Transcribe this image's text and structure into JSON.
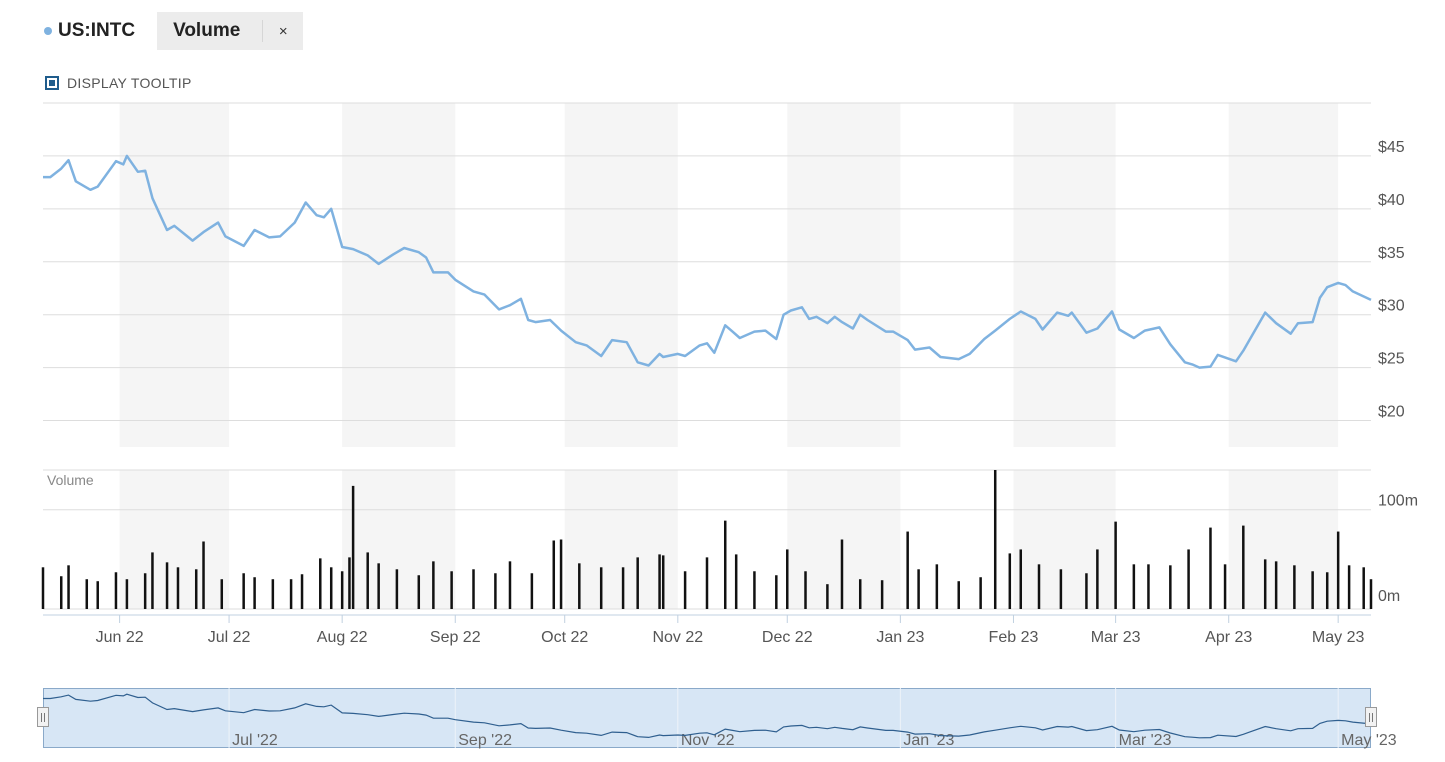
{
  "header": {
    "ticker": "US:INTC",
    "study_label": "Volume",
    "close_label": "×"
  },
  "tooltip_toggle": {
    "label": "DISPLAY TOOLTIP",
    "checked": true
  },
  "colors": {
    "price_line": "#7fb2e0",
    "volume_bar": "#111111",
    "band": "#f5f5f5",
    "grid": "#dddddd",
    "navigator_fill": "#d7e6f5",
    "navigator_border": "#8aa9c9"
  },
  "chart_data": {
    "type": "line",
    "title": "",
    "price_axis": {
      "ticks": [
        "$45",
        "$40",
        "$35",
        "$30",
        "$25",
        "$20"
      ],
      "tick_values": [
        45,
        40,
        35,
        30,
        25,
        20
      ],
      "ylim": [
        17.5,
        50
      ]
    },
    "volume_axis": {
      "label": "Volume",
      "ticks": [
        "100m",
        "0m"
      ],
      "tick_values": [
        100,
        0
      ],
      "ylim": [
        0,
        140
      ]
    },
    "x_axis": {
      "ticks": [
        "Jun 22",
        "Jul 22",
        "Aug 22",
        "Sep 22",
        "Oct 22",
        "Nov 22",
        "Dec 22",
        "Jan 23",
        "Feb 23",
        "Mar 23",
        "Apr 23",
        "May 23"
      ],
      "tick_dates": [
        "2022-06-01",
        "2022-07-01",
        "2022-08-01",
        "2022-09-01",
        "2022-10-01",
        "2022-11-01",
        "2022-12-01",
        "2023-01-01",
        "2023-02-01",
        "2023-03-01",
        "2023-04-01",
        "2023-05-01"
      ],
      "range": [
        "2022-05-11",
        "2023-05-10"
      ]
    },
    "series": [
      {
        "values": [
          [
            "2022-05-11",
            43.0
          ],
          [
            "2022-05-13",
            43.0
          ],
          [
            "2022-05-16",
            43.8
          ],
          [
            "2022-05-18",
            44.6
          ],
          [
            "2022-05-20",
            42.6
          ],
          [
            "2022-05-24",
            41.8
          ],
          [
            "2022-05-26",
            42.1
          ],
          [
            "2022-05-31",
            44.5
          ],
          [
            "2022-06-02",
            44.2
          ],
          [
            "2022-06-03",
            45.0
          ],
          [
            "2022-06-06",
            43.5
          ],
          [
            "2022-06-08",
            43.6
          ],
          [
            "2022-06-10",
            41.0
          ],
          [
            "2022-06-14",
            38.0
          ],
          [
            "2022-06-16",
            38.4
          ],
          [
            "2022-06-21",
            37.0
          ],
          [
            "2022-06-24",
            37.8
          ],
          [
            "2022-06-28",
            38.7
          ],
          [
            "2022-06-30",
            37.4
          ],
          [
            "2022-07-05",
            36.5
          ],
          [
            "2022-07-08",
            38.0
          ],
          [
            "2022-07-12",
            37.3
          ],
          [
            "2022-07-15",
            37.4
          ],
          [
            "2022-07-19",
            38.7
          ],
          [
            "2022-07-22",
            40.6
          ],
          [
            "2022-07-25",
            39.4
          ],
          [
            "2022-07-27",
            39.2
          ],
          [
            "2022-07-29",
            40.0
          ],
          [
            "2022-08-01",
            36.4
          ],
          [
            "2022-08-04",
            36.2
          ],
          [
            "2022-08-08",
            35.6
          ],
          [
            "2022-08-11",
            34.8
          ],
          [
            "2022-08-15",
            35.7
          ],
          [
            "2022-08-18",
            36.3
          ],
          [
            "2022-08-22",
            35.9
          ],
          [
            "2022-08-24",
            35.4
          ],
          [
            "2022-08-26",
            34.0
          ],
          [
            "2022-08-30",
            34.0
          ],
          [
            "2022-09-01",
            33.3
          ],
          [
            "2022-09-06",
            32.2
          ],
          [
            "2022-09-09",
            31.9
          ],
          [
            "2022-09-13",
            30.5
          ],
          [
            "2022-09-16",
            30.9
          ],
          [
            "2022-09-19",
            31.5
          ],
          [
            "2022-09-21",
            29.5
          ],
          [
            "2022-09-23",
            29.3
          ],
          [
            "2022-09-27",
            29.5
          ],
          [
            "2022-09-30",
            28.5
          ],
          [
            "2022-10-04",
            27.4
          ],
          [
            "2022-10-07",
            27.1
          ],
          [
            "2022-10-11",
            26.1
          ],
          [
            "2022-10-14",
            27.6
          ],
          [
            "2022-10-18",
            27.4
          ],
          [
            "2022-10-21",
            25.5
          ],
          [
            "2022-10-24",
            25.2
          ],
          [
            "2022-10-27",
            26.3
          ],
          [
            "2022-10-28",
            26.0
          ],
          [
            "2022-11-01",
            26.3
          ],
          [
            "2022-11-03",
            26.1
          ],
          [
            "2022-11-07",
            27.1
          ],
          [
            "2022-11-09",
            27.3
          ],
          [
            "2022-11-11",
            26.4
          ],
          [
            "2022-11-14",
            29.0
          ],
          [
            "2022-11-16",
            28.4
          ],
          [
            "2022-11-18",
            27.8
          ],
          [
            "2022-11-22",
            28.4
          ],
          [
            "2022-11-25",
            28.5
          ],
          [
            "2022-11-28",
            27.7
          ],
          [
            "2022-11-30",
            30.0
          ],
          [
            "2022-12-02",
            30.4
          ],
          [
            "2022-12-05",
            30.7
          ],
          [
            "2022-12-07",
            29.6
          ],
          [
            "2022-12-09",
            29.8
          ],
          [
            "2022-12-12",
            29.2
          ],
          [
            "2022-12-14",
            29.8
          ],
          [
            "2022-12-16",
            29.3
          ],
          [
            "2022-12-19",
            28.7
          ],
          [
            "2022-12-21",
            30.0
          ],
          [
            "2022-12-23",
            29.5
          ],
          [
            "2022-12-28",
            28.4
          ],
          [
            "2022-12-30",
            28.4
          ],
          [
            "2023-01-03",
            27.6
          ],
          [
            "2023-01-05",
            26.7
          ],
          [
            "2023-01-09",
            26.9
          ],
          [
            "2023-01-12",
            26.0
          ],
          [
            "2023-01-17",
            25.8
          ],
          [
            "2023-01-20",
            26.3
          ],
          [
            "2023-01-24",
            27.7
          ],
          [
            "2023-01-27",
            28.5
          ],
          [
            "2023-01-31",
            29.6
          ],
          [
            "2023-02-03",
            30.3
          ],
          [
            "2023-02-07",
            29.6
          ],
          [
            "2023-02-09",
            28.6
          ],
          [
            "2023-02-13",
            30.2
          ],
          [
            "2023-02-16",
            29.9
          ],
          [
            "2023-02-17",
            30.2
          ],
          [
            "2023-02-21",
            28.3
          ],
          [
            "2023-02-24",
            28.7
          ],
          [
            "2023-02-28",
            30.3
          ],
          [
            "2023-03-02",
            28.6
          ],
          [
            "2023-03-06",
            27.8
          ],
          [
            "2023-03-09",
            28.5
          ],
          [
            "2023-03-13",
            28.8
          ],
          [
            "2023-03-16",
            27.2
          ],
          [
            "2023-03-20",
            25.5
          ],
          [
            "2023-03-22",
            25.3
          ],
          [
            "2023-03-24",
            25.0
          ],
          [
            "2023-03-27",
            25.1
          ],
          [
            "2023-03-29",
            26.2
          ],
          [
            "2023-04-03",
            25.6
          ],
          [
            "2023-04-05",
            26.6
          ],
          [
            "2023-04-07",
            27.8
          ],
          [
            "2023-04-11",
            30.2
          ],
          [
            "2023-04-14",
            29.2
          ],
          [
            "2023-04-18",
            28.2
          ],
          [
            "2023-04-20",
            29.2
          ],
          [
            "2023-04-24",
            29.3
          ],
          [
            "2023-04-26",
            31.6
          ],
          [
            "2023-04-28",
            32.6
          ],
          [
            "2023-05-01",
            33.0
          ],
          [
            "2023-05-03",
            32.8
          ],
          [
            "2023-05-05",
            32.2
          ],
          [
            "2023-05-10",
            31.4
          ]
        ]
      }
    ],
    "volume_series": {
      "note": "daily volume in millions",
      "values": [
        [
          "2022-05-11",
          42
        ],
        [
          "2022-05-16",
          33
        ],
        [
          "2022-05-18",
          44
        ],
        [
          "2022-05-23",
          30
        ],
        [
          "2022-05-26",
          28
        ],
        [
          "2022-05-31",
          37
        ],
        [
          "2022-06-03",
          30
        ],
        [
          "2022-06-08",
          36
        ],
        [
          "2022-06-10",
          57
        ],
        [
          "2022-06-14",
          47
        ],
        [
          "2022-06-17",
          42
        ],
        [
          "2022-06-22",
          40
        ],
        [
          "2022-06-24",
          68
        ],
        [
          "2022-06-29",
          30
        ],
        [
          "2022-07-05",
          36
        ],
        [
          "2022-07-08",
          32
        ],
        [
          "2022-07-13",
          30
        ],
        [
          "2022-07-18",
          30
        ],
        [
          "2022-07-21",
          35
        ],
        [
          "2022-07-26",
          51
        ],
        [
          "2022-07-29",
          42
        ],
        [
          "2022-08-01",
          38
        ],
        [
          "2022-08-03",
          52
        ],
        [
          "2022-08-04",
          124
        ],
        [
          "2022-08-08",
          57
        ],
        [
          "2022-08-11",
          46
        ],
        [
          "2022-08-16",
          40
        ],
        [
          "2022-08-22",
          34
        ],
        [
          "2022-08-26",
          48
        ],
        [
          "2022-08-31",
          38
        ],
        [
          "2022-09-06",
          40
        ],
        [
          "2022-09-12",
          36
        ],
        [
          "2022-09-16",
          48
        ],
        [
          "2022-09-22",
          36
        ],
        [
          "2022-09-28",
          69
        ],
        [
          "2022-09-30",
          70
        ],
        [
          "2022-10-05",
          46
        ],
        [
          "2022-10-11",
          42
        ],
        [
          "2022-10-17",
          42
        ],
        [
          "2022-10-21",
          52
        ],
        [
          "2022-10-27",
          55
        ],
        [
          "2022-10-28",
          54
        ],
        [
          "2022-11-03",
          38
        ],
        [
          "2022-11-09",
          52
        ],
        [
          "2022-11-14",
          89
        ],
        [
          "2022-11-17",
          55
        ],
        [
          "2022-11-22",
          38
        ],
        [
          "2022-11-28",
          34
        ],
        [
          "2022-12-01",
          60
        ],
        [
          "2022-12-06",
          38
        ],
        [
          "2022-12-12",
          25
        ],
        [
          "2022-12-16",
          70
        ],
        [
          "2022-12-21",
          30
        ],
        [
          "2022-12-27",
          29
        ],
        [
          "2023-01-03",
          78
        ],
        [
          "2023-01-06",
          40
        ],
        [
          "2023-01-11",
          45
        ],
        [
          "2023-01-17",
          28
        ],
        [
          "2023-01-23",
          32
        ],
        [
          "2023-01-27",
          140
        ],
        [
          "2023-01-31",
          56
        ],
        [
          "2023-02-03",
          60
        ],
        [
          "2023-02-08",
          45
        ],
        [
          "2023-02-14",
          40
        ],
        [
          "2023-02-21",
          36
        ],
        [
          "2023-02-24",
          60
        ],
        [
          "2023-03-01",
          88
        ],
        [
          "2023-03-06",
          45
        ],
        [
          "2023-03-10",
          45
        ],
        [
          "2023-03-16",
          44
        ],
        [
          "2023-03-21",
          60
        ],
        [
          "2023-03-27",
          82
        ],
        [
          "2023-03-31",
          45
        ],
        [
          "2023-04-05",
          84
        ],
        [
          "2023-04-11",
          50
        ],
        [
          "2023-04-14",
          48
        ],
        [
          "2023-04-19",
          44
        ],
        [
          "2023-04-24",
          38
        ],
        [
          "2023-04-28",
          37
        ],
        [
          "2023-05-01",
          78
        ],
        [
          "2023-05-04",
          44
        ],
        [
          "2023-05-08",
          42
        ],
        [
          "2023-05-10",
          30
        ]
      ]
    }
  },
  "navigator": {
    "labels": [
      "Jul '22",
      "Sep '22",
      "Nov '22",
      "Jan '23",
      "Mar '23",
      "May '23"
    ],
    "label_dates": [
      "2022-07-01",
      "2022-09-01",
      "2022-11-01",
      "2023-01-01",
      "2023-03-01",
      "2023-05-01"
    ]
  }
}
